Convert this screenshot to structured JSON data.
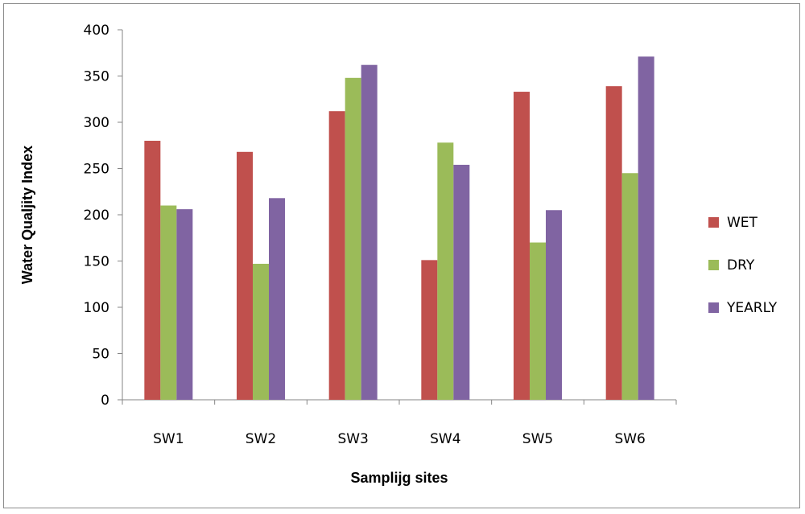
{
  "chart_data": {
    "type": "bar",
    "title": "",
    "xlabel": "Samplijg sites",
    "ylabel": "Water Qualjity Index",
    "categories": [
      "SW1",
      "SW2",
      "SW3",
      "SW4",
      "SW5",
      "SW6"
    ],
    "series": [
      {
        "name": "WET",
        "color": "#C0504D",
        "values": [
          280,
          268,
          312,
          151,
          333,
          339
        ]
      },
      {
        "name": "DRY",
        "color": "#9BBB59",
        "values": [
          210,
          147,
          348,
          278,
          170,
          245
        ]
      },
      {
        "name": "YEARLY",
        "color": "#8064A2",
        "values": [
          206,
          218,
          362,
          254,
          205,
          371
        ]
      }
    ],
    "ylim": [
      0,
      400
    ],
    "yticks": [
      "0",
      "50",
      "100",
      "150",
      "200",
      "250",
      "300",
      "350",
      "400"
    ],
    "grid": false,
    "legend": "right"
  }
}
